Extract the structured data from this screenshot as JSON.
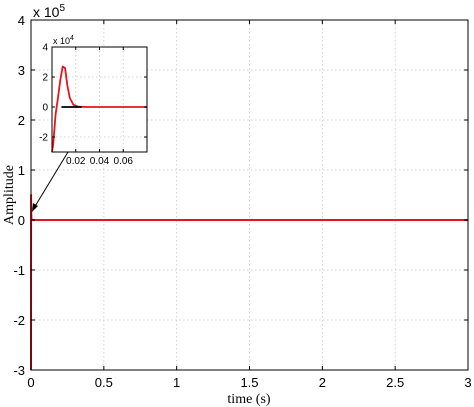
{
  "chart_data": [
    {
      "type": "line",
      "name": "main",
      "xlabel": "time (s)",
      "ylabel": "Amplitude",
      "xlim": [
        0,
        3
      ],
      "ylim": [
        -3,
        4
      ],
      "y_multiplier": "x 10",
      "y_multiplier_exp": "5",
      "x_ticks": [
        "0",
        "0.5",
        "1",
        "1.5",
        "2",
        "2.5",
        "3"
      ],
      "y_ticks": [
        "-3",
        "-2",
        "-1",
        "0",
        "1",
        "2",
        "3",
        "4"
      ],
      "grid": true,
      "series": [
        {
          "color": "#e8141c",
          "x": [
            0,
            0.0005,
            0.001,
            0.002,
            0.003,
            0.005,
            0.01,
            0.02,
            0.05,
            3
          ],
          "y": [
            -3,
            0.5,
            0.3,
            0.1,
            0.03,
            0.01,
            0,
            0,
            0,
            0
          ]
        }
      ]
    },
    {
      "type": "line",
      "name": "inset",
      "xlim": [
        0,
        0.08
      ],
      "ylim": [
        -3,
        4
      ],
      "y_multiplier": "x 10",
      "y_multiplier_exp": "4",
      "x_ticks": [
        "0.02",
        "0.04",
        "0.06"
      ],
      "y_ticks": [
        "-2",
        "0",
        "2",
        "4"
      ],
      "grid": true,
      "series": [
        {
          "color": "#e8141c",
          "x": [
            0,
            0.001,
            0.003,
            0.005,
            0.007,
            0.009,
            0.011,
            0.013,
            0.015,
            0.018,
            0.022,
            0.03,
            0.08
          ],
          "y": [
            -3,
            -2.5,
            -0.5,
            0.6,
            1.8,
            2.7,
            2.6,
            1.4,
            0.6,
            0.15,
            0.02,
            0,
            0
          ]
        },
        {
          "color": "#000000",
          "x": [
            0.008,
            0.025
          ],
          "y": [
            0,
            0
          ]
        }
      ]
    }
  ]
}
